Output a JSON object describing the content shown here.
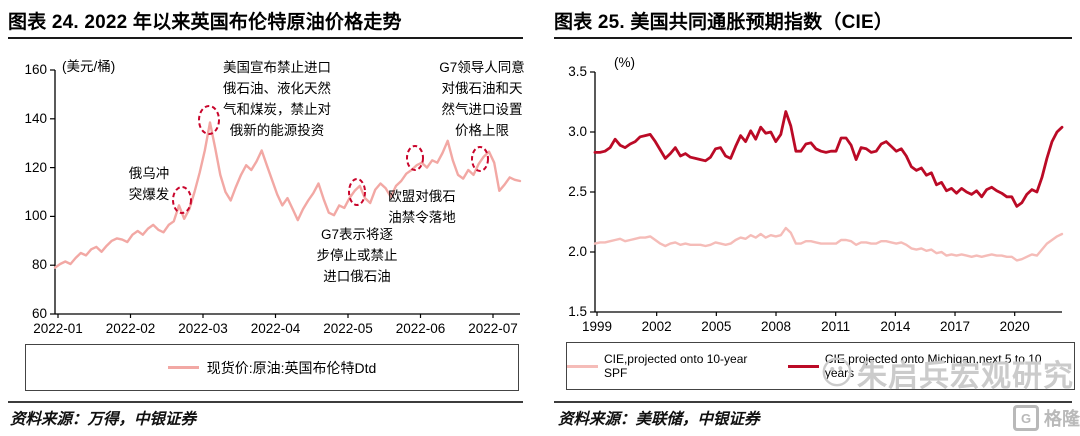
{
  "colors": {
    "brent_line": "#F2A8A4",
    "spf_line": "#F5BCB8",
    "michigan_line": "#BB0A26",
    "marker_circle": "#C9042B",
    "title_rule": "#1A1A1A",
    "source_rule": "#3C3C3C",
    "watermark_gray": "#CBCBCB",
    "logo_gray": "#B9B9B9"
  },
  "panels": [
    {
      "source": "资料来源：万得，中银证券"
    },
    {
      "source": "资料来源：美联储，中银证券"
    }
  ],
  "watermark": {
    "text": "朱启兵宏观研究"
  },
  "logo": {
    "letter": "G",
    "text": "格隆汇"
  },
  "chart_data": [
    {
      "type": "line",
      "title": "图表 24. 2022 年以来英国布伦特原油价格走势",
      "ylabel": "(美元/桶)",
      "xlabel": "",
      "ylim": [
        60,
        160
      ],
      "y_ticks": [
        "160",
        "140",
        "120",
        "100",
        "80",
        "60"
      ],
      "x_tick_labels": [
        "2022-01",
        "2022-02",
        "2022-03",
        "2022-04",
        "2022-05",
        "2022-06",
        "2022-07"
      ],
      "grid": false,
      "legend_position": "bottom-box",
      "series": [
        {
          "name": "现货价:原油:英国布伦特Dtd",
          "color": "#F2A8A4",
          "values": [
            79,
            80.5,
            81.5,
            80.5,
            83,
            85,
            84,
            86.5,
            87.5,
            85.5,
            88,
            90,
            91,
            90.5,
            89.5,
            92.5,
            94,
            92.5,
            95,
            96.5,
            94.5,
            93.5,
            96.5,
            98,
            104.5,
            99,
            103,
            110,
            118,
            127,
            138.5,
            128,
            117,
            110,
            106.5,
            112,
            117,
            121,
            119,
            122.5,
            127,
            121,
            115,
            109,
            104.5,
            107.5,
            103,
            98.5,
            103,
            106.5,
            109.5,
            113.5,
            107,
            101.5,
            100.5,
            104.5,
            103.5,
            107.5,
            110.5,
            112.5,
            107.5,
            105.5,
            111,
            113.5,
            111.5,
            108,
            112.5,
            114.5,
            117.5,
            119,
            121,
            122,
            120,
            123,
            122,
            126,
            131,
            123,
            117,
            115.5,
            119,
            117,
            121.5,
            124.5,
            126.5,
            122,
            110.5,
            113,
            116,
            115,
            114.5
          ]
        }
      ],
      "annotations": [
        {
          "id": "conflict-outbreak",
          "lines": [
            "俄乌冲",
            "突爆发"
          ],
          "x": 149,
          "y": 163
        },
        {
          "id": "us-import-ban",
          "lines": [
            "美国宣布禁止进口",
            "俄石油、液化天然",
            "气和煤炭，禁止对",
            "俄新的能源投资"
          ],
          "x": 277,
          "y": 57
        },
        {
          "id": "g7-phase-out",
          "lines": [
            "G7表示将逐",
            "步停止或禁止",
            "进口俄石油"
          ],
          "x": 357,
          "y": 224
        },
        {
          "id": "eu-ban-landed",
          "lines": [
            "欧盟对俄石",
            "油禁令落地"
          ],
          "x": 422,
          "y": 186
        },
        {
          "id": "g7-price-cap",
          "lines": [
            "G7领导人同意",
            "对俄石油和天",
            "然气进口设置",
            "价格上限"
          ],
          "x": 482,
          "y": 57
        }
      ],
      "markers": [
        {
          "cx": 182,
          "cy": 200,
          "rx": 9,
          "ry": 13
        },
        {
          "cx": 209,
          "cy": 120,
          "rx": 10,
          "ry": 14
        },
        {
          "cx": 357,
          "cy": 192,
          "rx": 8,
          "ry": 13
        },
        {
          "cx": 415,
          "cy": 158,
          "rx": 8,
          "ry": 12
        },
        {
          "cx": 480,
          "cy": 159,
          "rx": 8,
          "ry": 12
        }
      ]
    },
    {
      "type": "line",
      "title": "图表 25. 美国共同通胀预期指数（CIE）",
      "ylabel": "(%)",
      "xlabel": "",
      "ylim": [
        1.5,
        3.5
      ],
      "y_ticks": [
        "3.5",
        "3.0",
        "2.5",
        "2.0",
        "1.5"
      ],
      "x_tick_labels": [
        "1999",
        "2002",
        "2005",
        "2008",
        "2011",
        "2014",
        "2017",
        "2020"
      ],
      "x_range": [
        1999,
        2022.5
      ],
      "grid": false,
      "legend_position": "bottom-box",
      "series": [
        {
          "name": "CIE,projected onto 10-year SPF",
          "color": "#F5BCB8",
          "values": [
            2.07,
            2.08,
            2.08,
            2.09,
            2.1,
            2.11,
            2.09,
            2.1,
            2.11,
            2.12,
            2.12,
            2.13,
            2.1,
            2.07,
            2.05,
            2.07,
            2.08,
            2.06,
            2.07,
            2.06,
            2.06,
            2.06,
            2.05,
            2.06,
            2.08,
            2.07,
            2.06,
            2.07,
            2.1,
            2.12,
            2.11,
            2.14,
            2.12,
            2.15,
            2.12,
            2.14,
            2.13,
            2.14,
            2.2,
            2.16,
            2.07,
            2.07,
            2.09,
            2.09,
            2.08,
            2.07,
            2.07,
            2.07,
            2.07,
            2.1,
            2.1,
            2.09,
            2.06,
            2.08,
            2.08,
            2.07,
            2.07,
            2.09,
            2.09,
            2.08,
            2.07,
            2.08,
            2.06,
            2.03,
            2.02,
            2.03,
            2.01,
            2.02,
            1.99,
            2.0,
            1.97,
            1.98,
            1.97,
            1.98,
            1.97,
            1.96,
            1.97,
            1.96,
            1.97,
            1.98,
            1.97,
            1.97,
            1.96,
            1.96,
            1.93,
            1.94,
            1.96,
            1.98,
            1.97,
            2.02,
            2.07,
            2.1,
            2.13,
            2.15
          ]
        },
        {
          "name": "CIE,projected onto Michigan,next 5 to 10 years",
          "color": "#BB0A26",
          "values": [
            2.83,
            2.83,
            2.84,
            2.87,
            2.94,
            2.89,
            2.87,
            2.9,
            2.92,
            2.96,
            2.97,
            2.98,
            2.92,
            2.85,
            2.78,
            2.82,
            2.87,
            2.8,
            2.82,
            2.79,
            2.78,
            2.77,
            2.76,
            2.79,
            2.86,
            2.87,
            2.8,
            2.78,
            2.88,
            2.97,
            2.92,
            3.01,
            2.94,
            3.04,
            2.99,
            3.0,
            2.92,
            2.98,
            3.17,
            3.05,
            2.84,
            2.84,
            2.9,
            2.91,
            2.86,
            2.84,
            2.83,
            2.84,
            2.84,
            2.95,
            2.95,
            2.89,
            2.77,
            2.87,
            2.86,
            2.83,
            2.84,
            2.9,
            2.92,
            2.88,
            2.84,
            2.86,
            2.8,
            2.71,
            2.68,
            2.7,
            2.64,
            2.66,
            2.56,
            2.58,
            2.51,
            2.53,
            2.49,
            2.53,
            2.5,
            2.48,
            2.51,
            2.46,
            2.52,
            2.54,
            2.51,
            2.49,
            2.46,
            2.46,
            2.38,
            2.41,
            2.48,
            2.52,
            2.5,
            2.62,
            2.78,
            2.92,
            3.0,
            3.04
          ]
        }
      ],
      "annotations": [],
      "markers": []
    }
  ]
}
